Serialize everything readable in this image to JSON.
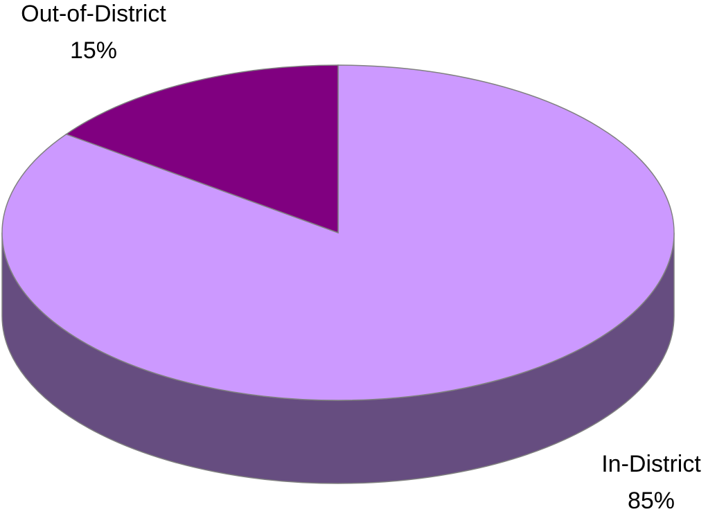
{
  "chart_data": {
    "type": "pie3d",
    "categories": [
      "In-District",
      "Out-of-District"
    ],
    "values": [
      85,
      15
    ],
    "value_labels": [
      "85%",
      "15%"
    ],
    "colors": [
      "#cc99ff",
      "#800080"
    ]
  }
}
